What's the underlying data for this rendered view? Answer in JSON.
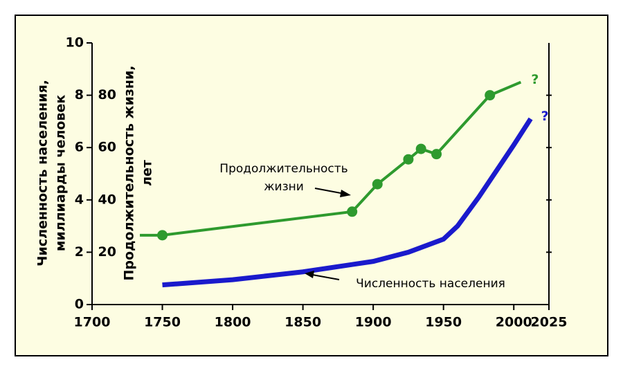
{
  "chart_data": {
    "type": "line",
    "y_title_lines": [
      "Численность населения,",
      "миллиарды человек"
    ],
    "y2_title_lines": [
      "Продолжительность жизни,",
      "лет"
    ],
    "xlim": [
      1700,
      2025
    ],
    "xticks": [
      1700,
      1750,
      1800,
      1850,
      1900,
      1950,
      2000,
      2025
    ],
    "ylim": [
      0,
      10
    ],
    "yticks": [
      0,
      2,
      4,
      6,
      8,
      10
    ],
    "y2lim": [
      0,
      100
    ],
    "y2ticks": [
      20,
      40,
      60,
      80
    ],
    "series": [
      {
        "name": "Продолжительность жизни",
        "color": "#2e9a2e",
        "axis": "y2",
        "end_label": "?",
        "x": [
          1734,
          1750,
          1885,
          1903,
          1925,
          1934,
          1945,
          1983,
          2005
        ],
        "values": [
          26.5,
          26.5,
          35.5,
          46,
          55.5,
          59.5,
          57.5,
          80,
          85
        ]
      },
      {
        "name": "Численность населения",
        "color": "#1a1acc",
        "end_label": "?",
        "x": [
          1750,
          1800,
          1850,
          1900,
          1925,
          1950,
          1960,
          1975,
          1990,
          2000,
          2012
        ],
        "values": [
          0.75,
          0.95,
          1.25,
          1.65,
          2.0,
          2.5,
          3.0,
          4.1,
          5.3,
          6.1,
          7.1
        ]
      }
    ]
  }
}
